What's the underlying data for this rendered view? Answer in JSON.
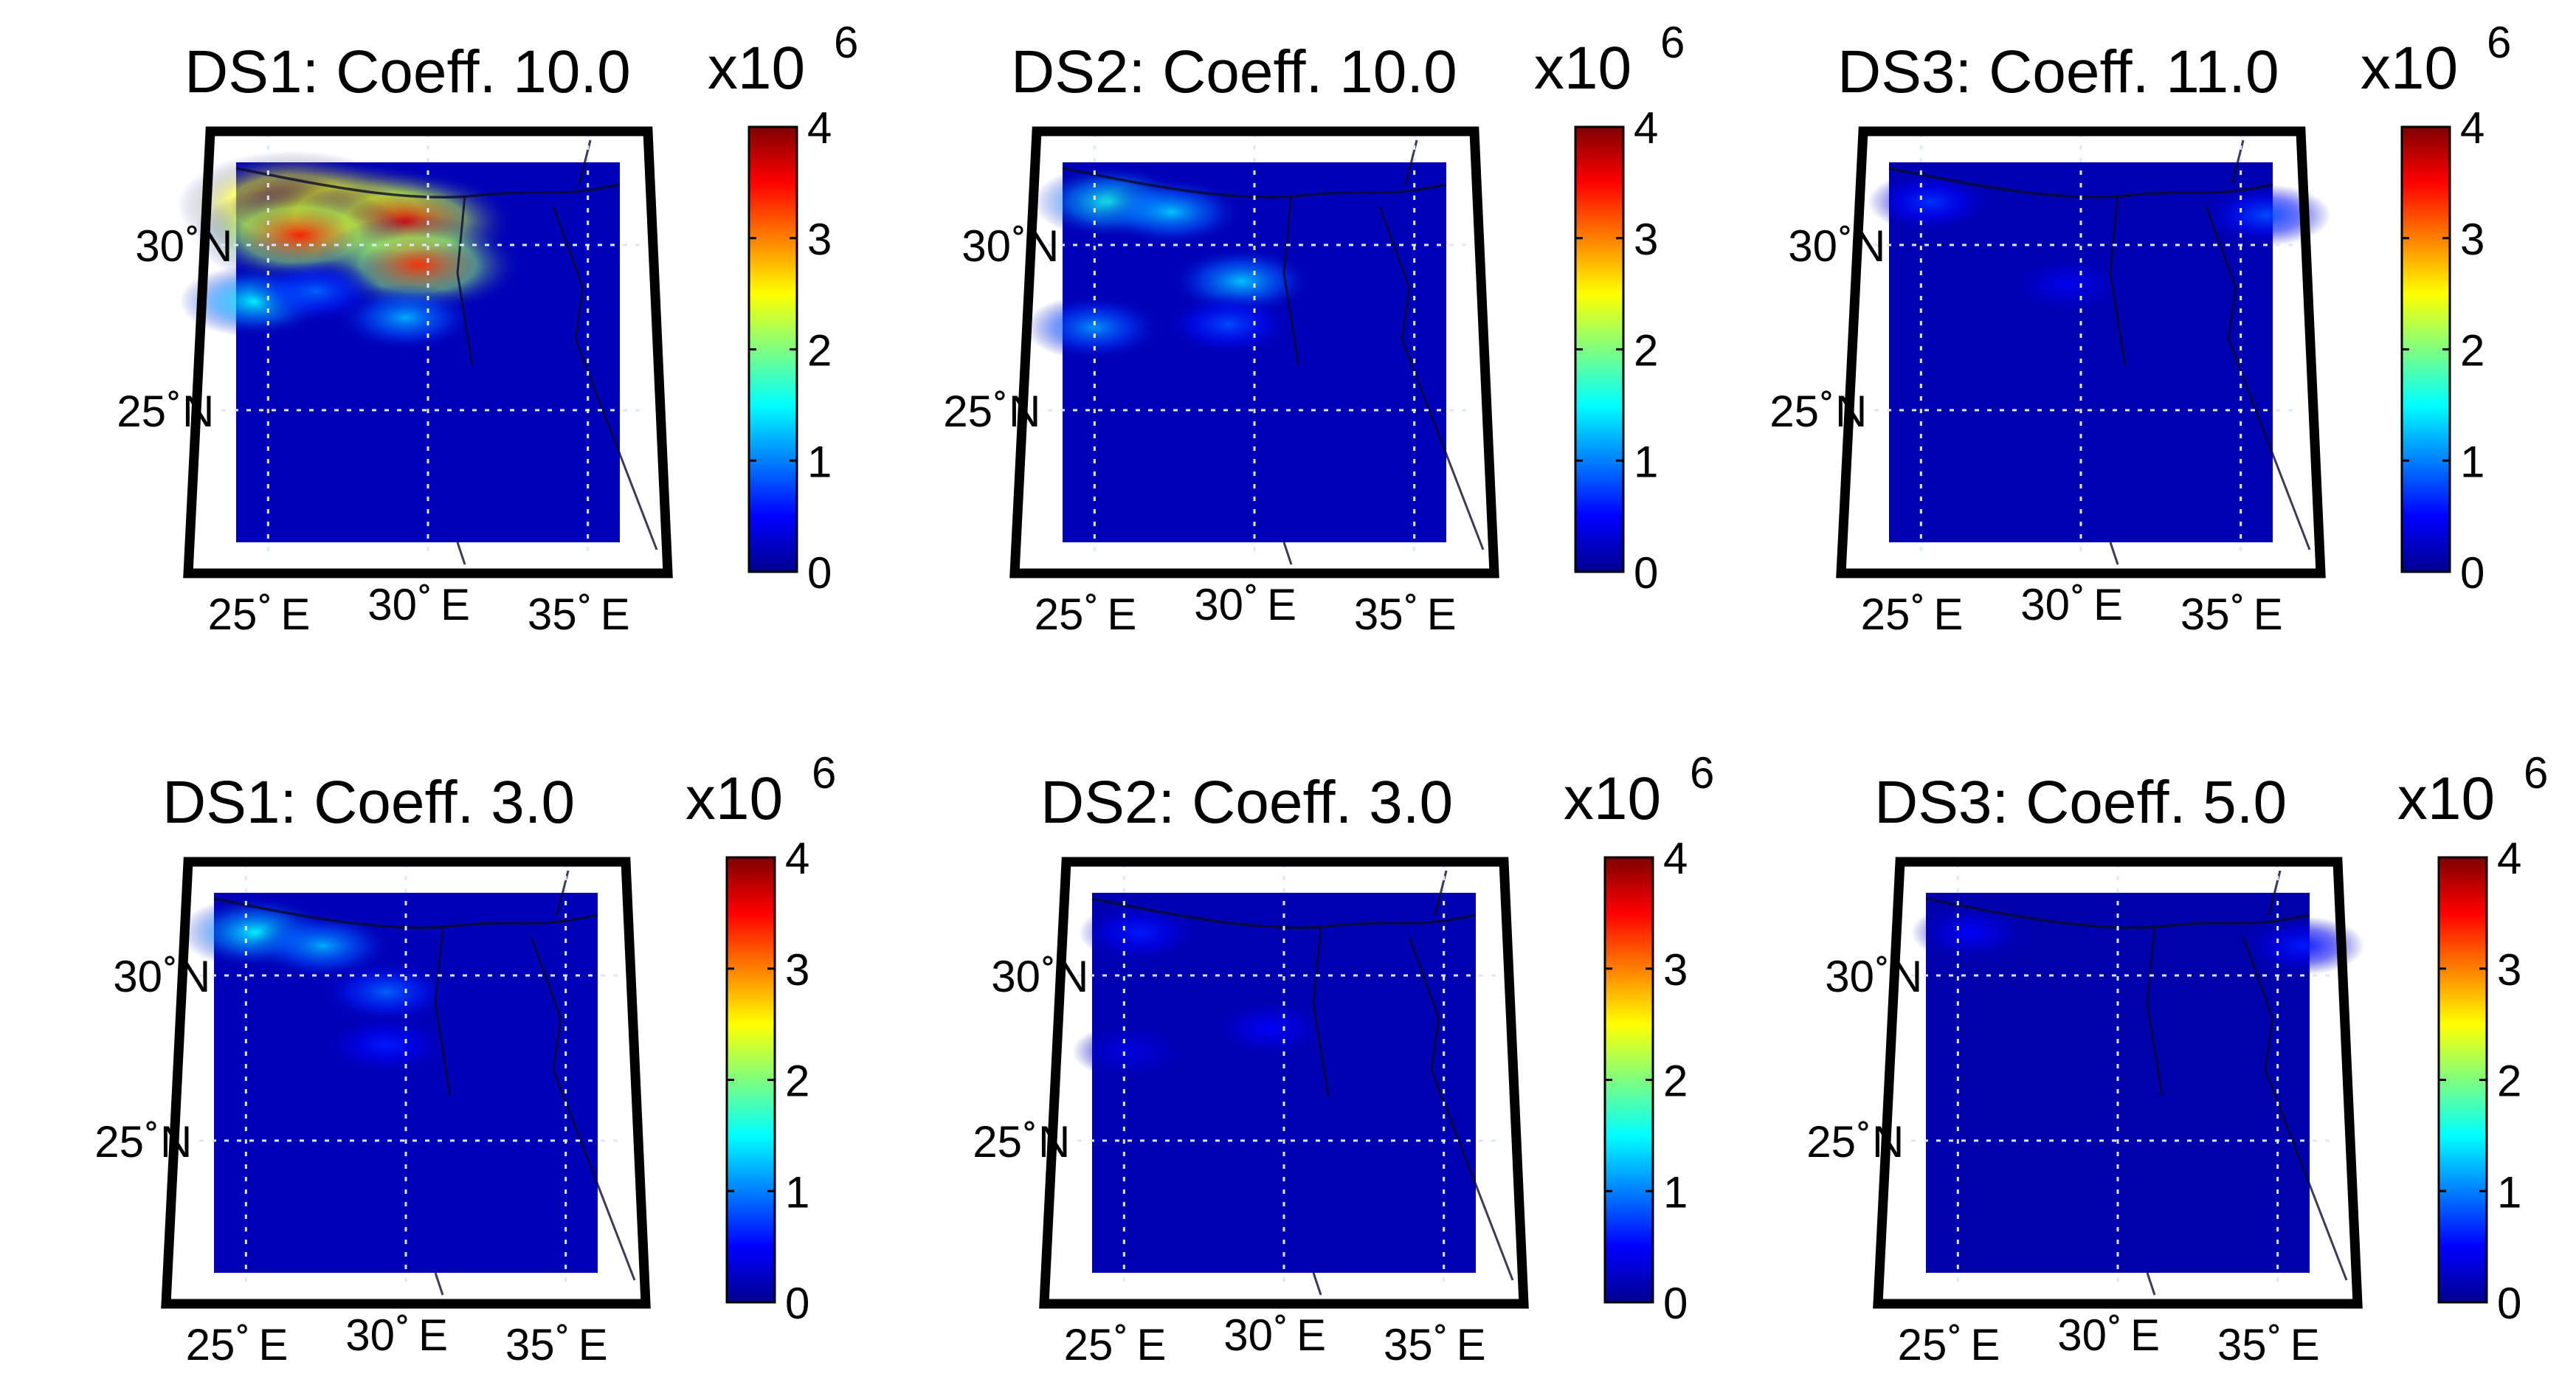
{
  "chart_data": [
    {
      "type": "heatmap",
      "title": "DS1: Coeff. 10.0",
      "dataset": "DS1",
      "coefficient": 10.0,
      "colorbar": {
        "label": "x10",
        "exponent": "6",
        "range": [
          0,
          4
        ],
        "ticks": [
          "0",
          "1",
          "2",
          "3",
          "4"
        ],
        "colormap": "jet"
      },
      "lat_labels": [
        "30",
        "25"
      ],
      "lat_suffix": "N",
      "lon_labels": [
        "25",
        "30",
        "35"
      ],
      "lon_suffix": "E",
      "lat_range": [
        21,
        32.5
      ],
      "lon_range": [
        24,
        36
      ],
      "background_value": 0.22,
      "plumes": [
        {
          "lon": 25.8,
          "lat": 31.2,
          "value": 4.0
        },
        {
          "lon": 27.8,
          "lat": 30.9,
          "value": 3.9
        },
        {
          "lon": 29.3,
          "lat": 30.7,
          "value": 3.6
        },
        {
          "lon": 26.0,
          "lat": 30.3,
          "value": 3.4
        },
        {
          "lon": 29.7,
          "lat": 29.4,
          "value": 3.3
        },
        {
          "lon": 24.6,
          "lat": 28.3,
          "value": 1.5
        },
        {
          "lon": 29.3,
          "lat": 27.8,
          "value": 1.2
        },
        {
          "lon": 26.5,
          "lat": 28.6,
          "value": 0.9
        }
      ]
    },
    {
      "type": "heatmap",
      "title": "DS2: Coeff. 10.0",
      "dataset": "DS2",
      "coefficient": 10.0,
      "colorbar": {
        "label": "x10",
        "exponent": "6",
        "range": [
          0,
          4
        ],
        "ticks": [
          "0",
          "1",
          "2",
          "3",
          "4"
        ],
        "colormap": "jet"
      },
      "lat_labels": [
        "30",
        "25"
      ],
      "lat_suffix": "N",
      "lon_labels": [
        "25",
        "30",
        "35"
      ],
      "lon_suffix": "E",
      "lat_range": [
        21,
        32.5
      ],
      "lon_range": [
        24,
        36
      ],
      "background_value": 0.22,
      "plumes": [
        {
          "lon": 25.5,
          "lat": 31.3,
          "value": 1.6
        },
        {
          "lon": 27.4,
          "lat": 31.0,
          "value": 1.3
        },
        {
          "lon": 29.6,
          "lat": 28.9,
          "value": 1.3
        },
        {
          "lon": 25.0,
          "lat": 27.5,
          "value": 1.1
        },
        {
          "lon": 29.2,
          "lat": 27.6,
          "value": 0.8
        }
      ]
    },
    {
      "type": "heatmap",
      "title": "DS3: Coeff. 11.0",
      "dataset": "DS3",
      "coefficient": 11.0,
      "colorbar": {
        "label": "x10",
        "exponent": "6",
        "range": [
          0,
          4
        ],
        "ticks": [
          "0",
          "1",
          "2",
          "3",
          "4"
        ],
        "colormap": "jet"
      },
      "lat_labels": [
        "30",
        "25"
      ],
      "lat_suffix": "N",
      "lon_labels": [
        "25",
        "30",
        "35"
      ],
      "lon_suffix": "E",
      "lat_range": [
        21,
        32.5
      ],
      "lon_range": [
        24,
        36
      ],
      "background_value": 0.2,
      "plumes": [
        {
          "lon": 25.3,
          "lat": 31.3,
          "value": 0.7
        },
        {
          "lon": 29.6,
          "lat": 28.8,
          "value": 0.45
        },
        {
          "lon": 35.8,
          "lat": 30.9,
          "value": 0.8
        }
      ]
    },
    {
      "type": "heatmap",
      "title": "DS1: Coeff. 3.0",
      "dataset": "DS1",
      "coefficient": 3.0,
      "colorbar": {
        "label": "x10",
        "exponent": "6",
        "range": [
          0,
          4
        ],
        "ticks": [
          "0",
          "1",
          "2",
          "3",
          "4"
        ],
        "colormap": "jet"
      },
      "lat_labels": [
        "30",
        "25"
      ],
      "lat_suffix": "N",
      "lon_labels": [
        "25",
        "30",
        "35"
      ],
      "lon_suffix": "E",
      "lat_range": [
        21,
        32.5
      ],
      "lon_range": [
        24,
        36
      ],
      "background_value": 0.22,
      "plumes": [
        {
          "lon": 25.3,
          "lat": 31.3,
          "value": 1.5
        },
        {
          "lon": 27.4,
          "lat": 30.9,
          "value": 1.2
        },
        {
          "lon": 29.4,
          "lat": 29.5,
          "value": 0.9
        },
        {
          "lon": 29.4,
          "lat": 27.9,
          "value": 0.6
        }
      ]
    },
    {
      "type": "heatmap",
      "title": "DS2: Coeff. 3.0",
      "dataset": "DS2",
      "coefficient": 3.0,
      "colorbar": {
        "label": "x10",
        "exponent": "6",
        "range": [
          0,
          4
        ],
        "ticks": [
          "0",
          "1",
          "2",
          "3",
          "4"
        ],
        "colormap": "jet"
      },
      "lat_labels": [
        "30",
        "25"
      ],
      "lat_suffix": "N",
      "lon_labels": [
        "25",
        "30",
        "35"
      ],
      "lon_suffix": "E",
      "lat_range": [
        21,
        32.5
      ],
      "lon_range": [
        24,
        36
      ],
      "background_value": 0.2,
      "plumes": [
        {
          "lon": 25.5,
          "lat": 31.3,
          "value": 0.6
        },
        {
          "lon": 29.6,
          "lat": 28.4,
          "value": 0.5
        },
        {
          "lon": 25.2,
          "lat": 27.7,
          "value": 0.4
        }
      ]
    },
    {
      "type": "heatmap",
      "title": "DS3: Coeff. 5.0",
      "dataset": "DS3",
      "coefficient": 5.0,
      "colorbar": {
        "label": "x10",
        "exponent": "6",
        "range": [
          0,
          4
        ],
        "ticks": [
          "0",
          "1",
          "2",
          "3",
          "4"
        ],
        "colormap": "jet"
      },
      "lat_labels": [
        "30",
        "25"
      ],
      "lat_suffix": "N",
      "lon_labels": [
        "25",
        "30",
        "35"
      ],
      "lon_suffix": "E",
      "lat_range": [
        21,
        32.5
      ],
      "lon_range": [
        24,
        36
      ],
      "background_value": 0.18,
      "plumes": [
        {
          "lon": 25.4,
          "lat": 31.3,
          "value": 0.5
        },
        {
          "lon": 35.8,
          "lat": 30.9,
          "value": 0.6
        }
      ]
    }
  ]
}
